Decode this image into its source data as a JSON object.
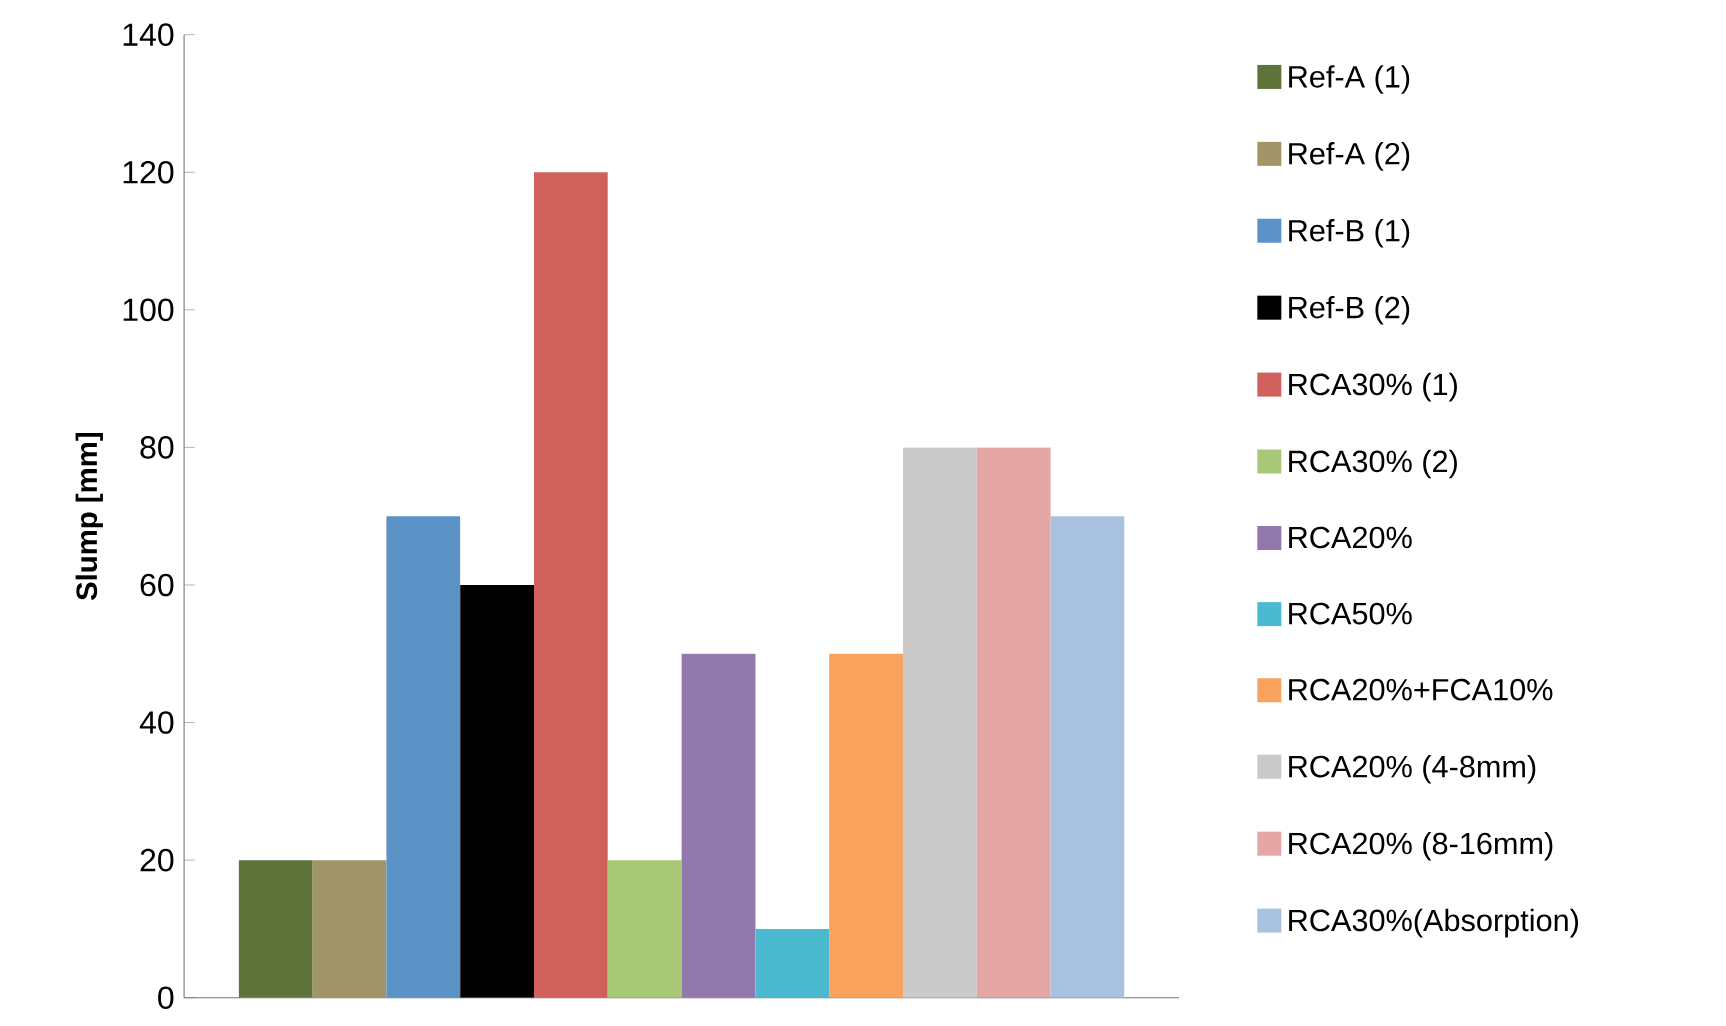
{
  "chart_data": {
    "type": "bar",
    "ylabel": "Slump [mm]",
    "categories": [
      null
    ],
    "ylim": [
      0,
      140
    ],
    "yticks": [
      0,
      20,
      40,
      60,
      80,
      100,
      120,
      140
    ],
    "legend": "right",
    "series": [
      {
        "name": "Ref-A (1)",
        "color": "#5e733a",
        "values": [
          20
        ]
      },
      {
        "name": "Ref-A (2)",
        "color": "#a09469",
        "values": [
          20
        ]
      },
      {
        "name": "Ref-B (1)",
        "color": "#5b93c7",
        "values": [
          70
        ]
      },
      {
        "name": "Ref-B (2)",
        "color": "#000000",
        "values": [
          60
        ]
      },
      {
        "name": "RCA30% (1)",
        "color": "#d0605c",
        "values": [
          120
        ]
      },
      {
        "name": "RCA30% (2)",
        "color": "#a8c878",
        "values": [
          20
        ]
      },
      {
        "name": "RCA20%",
        "color": "#9179ad",
        "values": [
          50
        ]
      },
      {
        "name": "RCA50%",
        "color": "#4bb9cf",
        "values": [
          10
        ]
      },
      {
        "name": "RCA20%+FCA10%",
        "color": "#f8a25e",
        "values": [
          50
        ]
      },
      {
        "name": "RCA20% (4-8mm)",
        "color": "#cacaca",
        "values": [
          80
        ]
      },
      {
        "name": "RCA20% (8-16mm)",
        "color": "#e5a6a6",
        "values": [
          80
        ]
      },
      {
        "name": "RCA30%(Absorption)",
        "color": "#a8c2df",
        "values": [
          70
        ]
      }
    ]
  }
}
